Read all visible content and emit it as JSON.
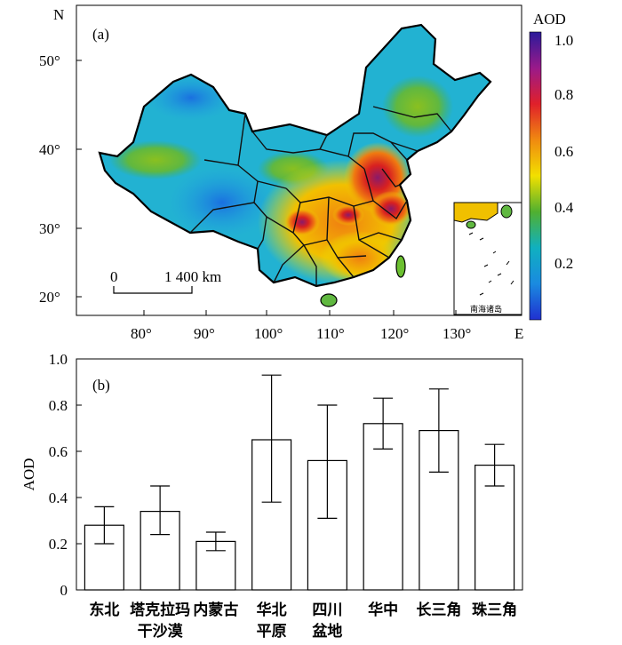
{
  "panel_a": {
    "label": "(a)",
    "north_label": "N",
    "east_label": "E",
    "lat_ticks": [
      "50°",
      "40°",
      "30°",
      "20°"
    ],
    "lon_ticks": [
      "80°",
      "90°",
      "100°",
      "110°",
      "120°",
      "130°"
    ],
    "scale_zero": "0",
    "scale_text": "1 400 km",
    "inset_label": "南海诸岛",
    "colorbar": {
      "title": "AOD",
      "ticks": [
        "1.0",
        "0.8",
        "0.6",
        "0.4",
        "0.2"
      ],
      "stops": [
        "#2a1a9a",
        "#9a1a8a",
        "#e0202a",
        "#f08a10",
        "#f2e000",
        "#50b030",
        "#10b0c0",
        "#1a8ae0",
        "#2030d0"
      ]
    }
  },
  "chart_data": {
    "type": "bar",
    "panel_label": "(b)",
    "ylabel": "AOD",
    "ylim": [
      0,
      1.0
    ],
    "yticks": [
      "0",
      "0.2",
      "0.4",
      "0.6",
      "0.8",
      "1.0"
    ],
    "categories": [
      {
        "line1": "东北",
        "line2": ""
      },
      {
        "line1": "塔克拉玛",
        "line2": "干沙漠"
      },
      {
        "line1": "内蒙古",
        "line2": ""
      },
      {
        "line1": "华北",
        "line2": "平原"
      },
      {
        "line1": "四川",
        "line2": "盆地"
      },
      {
        "line1": "华中",
        "line2": ""
      },
      {
        "line1": "长三角",
        "line2": ""
      },
      {
        "line1": "珠三角",
        "line2": ""
      }
    ],
    "values": [
      0.28,
      0.34,
      0.21,
      0.65,
      0.56,
      0.72,
      0.69,
      0.54
    ],
    "error_low": [
      0.2,
      0.24,
      0.17,
      0.38,
      0.31,
      0.61,
      0.51,
      0.45
    ],
    "error_high": [
      0.36,
      0.45,
      0.25,
      0.93,
      0.8,
      0.83,
      0.87,
      0.63
    ],
    "bar_fill": "#ffffff",
    "bar_edge": "#000000"
  }
}
